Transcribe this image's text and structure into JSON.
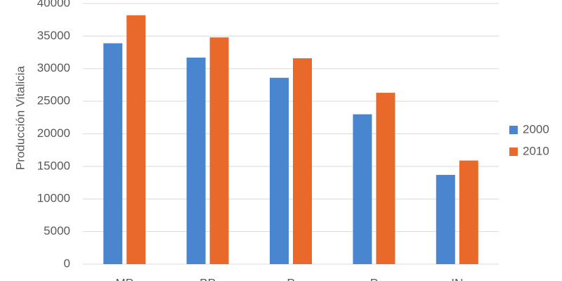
{
  "chart_data": {
    "type": "bar",
    "y_label": "Producción Vitalicia",
    "categories": [
      "MP",
      "BP",
      "P",
      "P",
      "IN"
    ],
    "series": [
      {
        "name": "2000",
        "color": "#4a86d0",
        "values": [
          33900,
          31700,
          28600,
          23000,
          13700
        ]
      },
      {
        "name": "2010",
        "color": "#e8692a",
        "values": [
          38200,
          34800,
          31600,
          26300,
          15900
        ]
      }
    ],
    "ylim": [
      0,
      40000
    ],
    "yticks": [
      0,
      5000,
      10000,
      15000,
      20000,
      25000,
      30000,
      35000,
      40000
    ],
    "grid": true,
    "legend": "right"
  }
}
